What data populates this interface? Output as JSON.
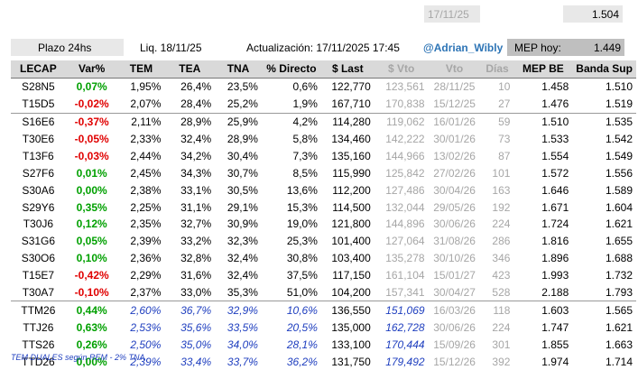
{
  "top": {
    "date": "17/11/25",
    "value": "1.504"
  },
  "info": {
    "plazo": "Plazo 24hs",
    "liq": "Liq.  18/11/25",
    "actualizacion": "Actualización: 17/11/2025 17:45",
    "handle": "@Adrian_Wibly",
    "mep_label": "MEP hoy:",
    "mep_value": "1.449"
  },
  "columns": [
    "LECAP",
    "Var%",
    "TEM",
    "TEA",
    "TNA",
    "% Directo",
    "$ Last",
    "$ Vto",
    "Vto",
    "Días",
    "MEP BE",
    "Banda Sup"
  ],
  "rows": [
    {
      "t": "S28N5",
      "v": "0,07%",
      "d": "up",
      "tem": "1,95%",
      "tea": "26,4%",
      "tna": "23,5%",
      "dir": "0,6%",
      "last": "122,770",
      "vto_p": "123,561",
      "vto": "28/11/25",
      "dias": "10",
      "mep": "1.458",
      "banda": "1.510",
      "kind": "lecap",
      "sep": false
    },
    {
      "t": "T15D5",
      "v": "-0,02%",
      "d": "down",
      "tem": "2,07%",
      "tea": "28,4%",
      "tna": "25,2%",
      "dir": "1,9%",
      "last": "167,710",
      "vto_p": "170,838",
      "vto": "15/12/25",
      "dias": "27",
      "mep": "1.476",
      "banda": "1.519",
      "kind": "lecap",
      "sep": true
    },
    {
      "t": "S16E6",
      "v": "-0,37%",
      "d": "down",
      "tem": "2,11%",
      "tea": "28,9%",
      "tna": "25,9%",
      "dir": "4,2%",
      "last": "114,280",
      "vto_p": "119,062",
      "vto": "16/01/26",
      "dias": "59",
      "mep": "1.510",
      "banda": "1.535",
      "kind": "lecap",
      "sep": false
    },
    {
      "t": "T30E6",
      "v": "-0,05%",
      "d": "down",
      "tem": "2,33%",
      "tea": "32,4%",
      "tna": "28,9%",
      "dir": "5,8%",
      "last": "134,460",
      "vto_p": "142,222",
      "vto": "30/01/26",
      "dias": "73",
      "mep": "1.533",
      "banda": "1.542",
      "kind": "lecap",
      "sep": false
    },
    {
      "t": "T13F6",
      "v": "-0,03%",
      "d": "down",
      "tem": "2,44%",
      "tea": "34,2%",
      "tna": "30,4%",
      "dir": "7,3%",
      "last": "135,160",
      "vto_p": "144,966",
      "vto": "13/02/26",
      "dias": "87",
      "mep": "1.554",
      "banda": "1.549",
      "kind": "lecap",
      "sep": false
    },
    {
      "t": "S27F6",
      "v": "0,01%",
      "d": "up",
      "tem": "2,45%",
      "tea": "34,3%",
      "tna": "30,7%",
      "dir": "8,5%",
      "last": "115,990",
      "vto_p": "125,842",
      "vto": "27/02/26",
      "dias": "101",
      "mep": "1.572",
      "banda": "1.556",
      "kind": "lecap",
      "sep": false
    },
    {
      "t": "S30A6",
      "v": "0,00%",
      "d": "up",
      "tem": "2,38%",
      "tea": "33,1%",
      "tna": "30,5%",
      "dir": "13,6%",
      "last": "112,200",
      "vto_p": "127,486",
      "vto": "30/04/26",
      "dias": "163",
      "mep": "1.646",
      "banda": "1.589",
      "kind": "lecap",
      "sep": false
    },
    {
      "t": "S29Y6",
      "v": "0,35%",
      "d": "up",
      "tem": "2,25%",
      "tea": "31,1%",
      "tna": "29,1%",
      "dir": "15,3%",
      "last": "114,500",
      "vto_p": "132,044",
      "vto": "29/05/26",
      "dias": "192",
      "mep": "1.671",
      "banda": "1.604",
      "kind": "lecap",
      "sep": false
    },
    {
      "t": "T30J6",
      "v": "0,12%",
      "d": "up",
      "tem": "2,35%",
      "tea": "32,7%",
      "tna": "30,9%",
      "dir": "19,0%",
      "last": "121,800",
      "vto_p": "144,896",
      "vto": "30/06/26",
      "dias": "224",
      "mep": "1.724",
      "banda": "1.621",
      "kind": "lecap",
      "sep": false
    },
    {
      "t": "S31G6",
      "v": "0,05%",
      "d": "up",
      "tem": "2,39%",
      "tea": "33,2%",
      "tna": "32,3%",
      "dir": "25,3%",
      "last": "101,400",
      "vto_p": "127,064",
      "vto": "31/08/26",
      "dias": "286",
      "mep": "1.816",
      "banda": "1.655",
      "kind": "lecap",
      "sep": false
    },
    {
      "t": "S30O6",
      "v": "0,10%",
      "d": "up",
      "tem": "2,36%",
      "tea": "32,8%",
      "tna": "32,4%",
      "dir": "30,8%",
      "last": "103,400",
      "vto_p": "135,278",
      "vto": "30/10/26",
      "dias": "346",
      "mep": "1.896",
      "banda": "1.688",
      "kind": "lecap",
      "sep": false
    },
    {
      "t": "T15E7",
      "v": "-0,42%",
      "d": "down",
      "tem": "2,29%",
      "tea": "31,6%",
      "tna": "32,4%",
      "dir": "37,5%",
      "last": "117,150",
      "vto_p": "161,104",
      "vto": "15/01/27",
      "dias": "423",
      "mep": "1.993",
      "banda": "1.732",
      "kind": "lecap",
      "sep": false
    },
    {
      "t": "T30A7",
      "v": "-0,10%",
      "d": "down",
      "tem": "2,37%",
      "tea": "33,0%",
      "tna": "35,3%",
      "dir": "51,0%",
      "last": "104,200",
      "vto_p": "157,341",
      "vto": "30/04/27",
      "dias": "528",
      "mep": "2.188",
      "banda": "1.793",
      "kind": "lecap",
      "sep": true
    },
    {
      "t": "TTM26",
      "v": "0,44%",
      "d": "up",
      "tem": "2,60%",
      "tea": "36,7%",
      "tna": "32,9%",
      "dir": "10,6%",
      "last": "136,550",
      "vto_p": "151,069",
      "vto": "16/03/26",
      "dias": "118",
      "mep": "1.603",
      "banda": "1.565",
      "kind": "dual",
      "sep": false
    },
    {
      "t": "TTJ26",
      "v": "0,63%",
      "d": "up",
      "tem": "2,53%",
      "tea": "35,6%",
      "tna": "33,5%",
      "dir": "20,5%",
      "last": "135,000",
      "vto_p": "162,728",
      "vto": "30/06/26",
      "dias": "224",
      "mep": "1.747",
      "banda": "1.621",
      "kind": "dual",
      "sep": false
    },
    {
      "t": "TTS26",
      "v": "0,26%",
      "d": "up",
      "tem": "2,50%",
      "tea": "35,0%",
      "tna": "34,0%",
      "dir": "28,1%",
      "last": "133,100",
      "vto_p": "170,444",
      "vto": "15/09/26",
      "dias": "301",
      "mep": "1.855",
      "banda": "1.663",
      "kind": "dual",
      "sep": false
    },
    {
      "t": "TTD26",
      "v": "0,00%",
      "d": "up",
      "tem": "2,39%",
      "tea": "33,4%",
      "tna": "33,7%",
      "dir": "36,2%",
      "last": "131,750",
      "vto_p": "179,492",
      "vto": "15/12/26",
      "dias": "392",
      "mep": "1.974",
      "banda": "1.714",
      "kind": "dual",
      "sep": false
    }
  ],
  "note": "TEM DUALES según REM - 2% TNA"
}
